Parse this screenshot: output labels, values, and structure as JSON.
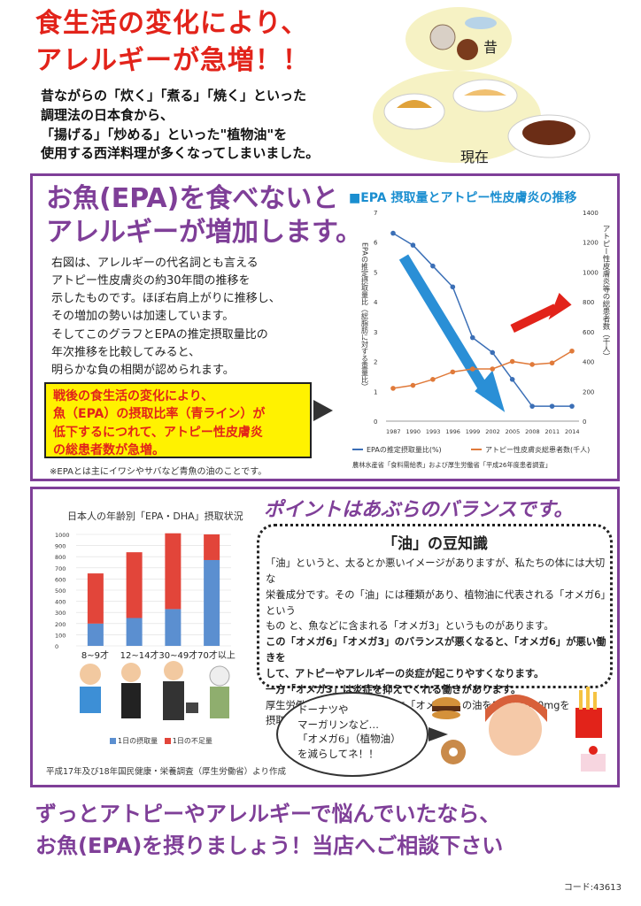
{
  "header": {
    "title1": "食生活の変化により、",
    "title2": "アレルギーが急増！！",
    "body_lines": [
      "昔ながらの「炊く」「煮る」「焼く」といった",
      "調理法の日本食から、",
      "「揚げる」「炒める」といった\"植物油\"を",
      "使用する西洋料理が多くなってしまいました。"
    ],
    "label_past": "昔",
    "label_present": "現在"
  },
  "section_a": {
    "title1": "お魚(EPA)を食べないと",
    "title2": "アレルギーが増加します。",
    "para_lines": [
      "右図は、アレルギーの代名詞とも言える",
      "アトピー性皮膚炎の約30年間の推移を",
      "示したものです。ほぼ右肩上がりに推移し、",
      "その増加の勢いは加速しています。",
      "そしてこのグラフとEPAの推定摂取量比の",
      "年次推移を比較してみると、",
      "明らかな負の相関が認められます。"
    ],
    "highlight_lines": [
      "戦後の食生活の変化により、",
      "魚（EPA）の摂取比率（青ライン）が",
      "低下するにつれて、アトピー性皮膚炎",
      "の総患者数が急増。"
    ],
    "note": "※EPAとは主にイワシやサバなど青魚の油のことです。"
  },
  "section_b": {
    "title": "ポイントはあぶらのバランスです。",
    "oil_title": "「油」の豆知識",
    "oil_lines": [
      "「油」というと、太るとか悪いイメージがありますが、私たちの体には大切な",
      "栄養成分です。その「油」には種類があり、植物油に代表される「オメガ6」という",
      "もの と、魚などに含まれる「オメガ3」というものがあります。",
      "この「オメガ6」「オメガ3」のバランスが悪くなると、「オメガ6」が悪い働きを",
      "して、アトピーやアレルギーの炎症が起こりやすくなります。",
      "一方「オメガ3」は炎症を抑えてくれる働きがあります。",
      "厚生労働省は健康維持のために「オメガ3」の油を1日に1000mgを",
      "摂取することをすすめています。"
    ],
    "bubble_lines": [
      "ドーナツや",
      "マーガリンなど…",
      "「オメガ6」（植物油）",
      "を減らしてネ！！"
    ]
  },
  "footer": {
    "line1": "ずっとアトピーやアレルギーで悩んでいたなら、",
    "line2": "お魚(EPA)を摂りましょう！当店へご相談下さい",
    "code": "コード:43613"
  },
  "colors": {
    "red": "#e2231a",
    "purple": "#7f3f98",
    "epa_blue": "#3b6fb6",
    "atopy_orange": "#e07a3a",
    "arrow_blue": "#2a8fd6",
    "bar_blue": "#5b8fd0",
    "bar_red": "#e2453a"
  },
  "chart_data": [
    {
      "type": "line",
      "title": "■EPA 摂取量とアトピー性皮膚炎の推移",
      "x": [
        "1987",
        "1990",
        "1993",
        "1996",
        "1999",
        "2002",
        "2005",
        "2008",
        "2011",
        "2014"
      ],
      "ylabel_left": "EPAの推定摂取量比（総脂肪に対する重量比）",
      "ylabel_right": "アトピー性皮膚炎等の総患者数（千人）",
      "ylim_left": [
        0,
        7
      ],
      "ylim_right": [
        0,
        1400
      ],
      "yticks_left": [
        "0",
        "1",
        "2",
        "3",
        "4",
        "5",
        "6",
        "7"
      ],
      "yticks_right": [
        "0",
        "200",
        "400",
        "600",
        "800",
        "1000",
        "1200",
        "1400"
      ],
      "series": [
        {
          "name": "EPAの推定摂取量比(%)",
          "axis": "left",
          "values": [
            6.3,
            5.9,
            5.2,
            4.5,
            2.8,
            2.3,
            1.4,
            0.5,
            0.5,
            0.5
          ]
        },
        {
          "name": "アトピー性皮膚炎総患者数(千人)",
          "axis": "right",
          "values": [
            220,
            240,
            280,
            330,
            350,
            350,
            400,
            380,
            390,
            470
          ]
        }
      ],
      "source": "農林水産省「食料需給表」および厚生労働省「平成26年度患者調査」"
    },
    {
      "type": "bar",
      "title": "日本人の年齢別「EPA・DHA」摂取状況",
      "categories": [
        "8~9才",
        "12~14才",
        "30~49才",
        "70才以上"
      ],
      "ylim": [
        0,
        1000
      ],
      "yticks": [
        "0",
        "100",
        "200",
        "300",
        "400",
        "500",
        "600",
        "700",
        "800",
        "900",
        "1000"
      ],
      "series": [
        {
          "name": "1日の摂取量",
          "values": [
            200,
            250,
            330,
            770
          ]
        },
        {
          "name": "1日の不足量",
          "values": [
            450,
            590,
            680,
            230
          ]
        }
      ],
      "source": "平成17年及び18年国民健康・栄養調査（厚生労働省）より作成"
    }
  ]
}
